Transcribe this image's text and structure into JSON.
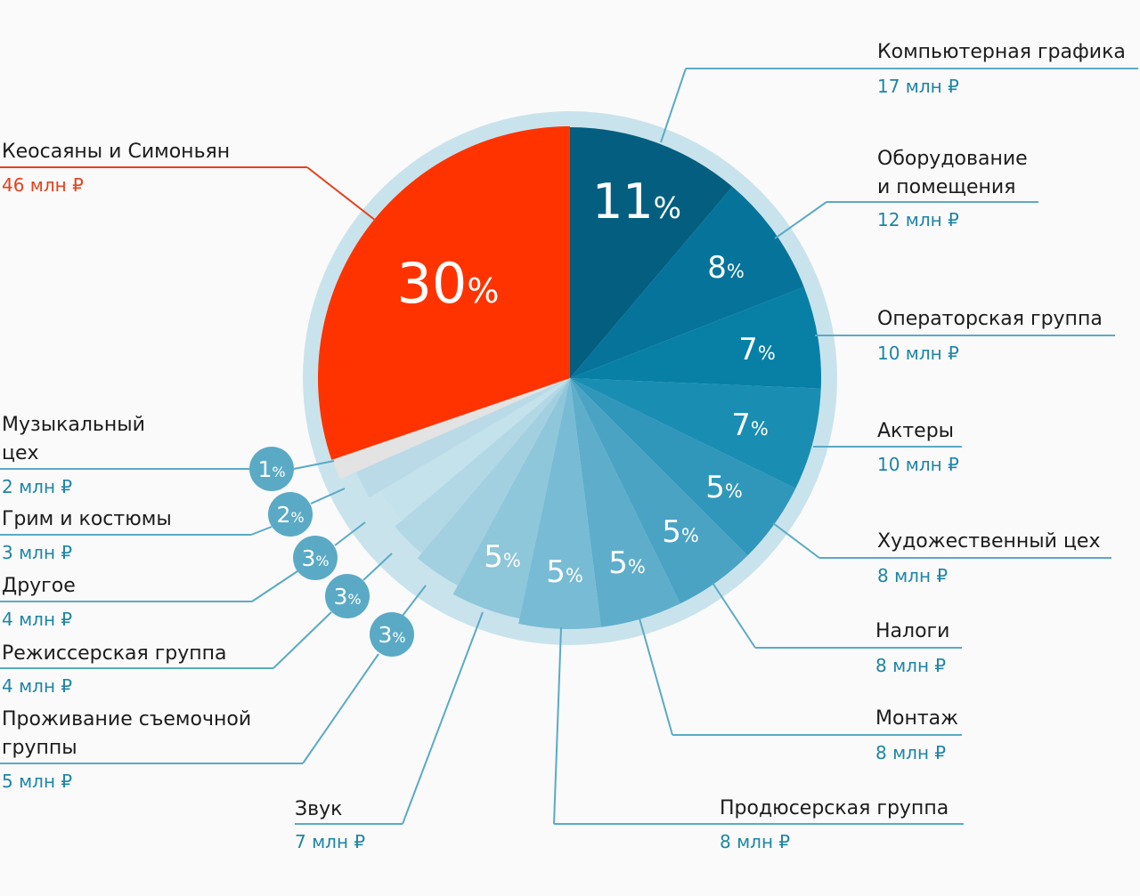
{
  "chart_data": {
    "type": "pie",
    "title": "",
    "unit": "млн ₽",
    "slices": [
      {
        "label": "Компьютерная графика",
        "value": 17,
        "value_text": "17 млн ₽",
        "pct": "11",
        "color": "#035e7f"
      },
      {
        "label": "Оборудование и помещения",
        "label_lines": [
          "Оборудование",
          "и помещения"
        ],
        "value": 12,
        "value_text": "12 млн ₽",
        "pct": "8",
        "color": "#06739a"
      },
      {
        "label": "Операторская группа",
        "value": 10,
        "value_text": "10 млн ₽",
        "pct": "7",
        "color": "#0880a6"
      },
      {
        "label": "Актеры",
        "value": 10,
        "value_text": "10 млн ₽",
        "pct": "7",
        "color": "#1a8db2"
      },
      {
        "label": "Художественный цех",
        "value": 8,
        "value_text": "8 млн ₽",
        "pct": "5",
        "color": "#3097bb"
      },
      {
        "label": "Налоги",
        "value": 8,
        "value_text": "8 млн ₽",
        "pct": "5",
        "color": "#4aa3c3"
      },
      {
        "label": "Монтаж",
        "value": 8,
        "value_text": "8 млн ₽",
        "pct": "5",
        "color": "#5eaecb"
      },
      {
        "label": "Продюсерская группа",
        "value": 8,
        "value_text": "8 млн ₽",
        "pct": "5",
        "color": "#78bbd4"
      },
      {
        "label": "Звук",
        "value": 7,
        "value_text": "7 млн ₽",
        "pct": "5",
        "color": "#8ec6da"
      },
      {
        "label": "Проживание съемочной группы",
        "label_lines": [
          "Проживание съемочной",
          "группы"
        ],
        "value": 5,
        "value_text": "5 млн ₽",
        "pct": "3",
        "color": "#a3d0e0"
      },
      {
        "label": "Режиссерская группа",
        "value": 4,
        "value_text": "4 млн ₽",
        "pct": "3",
        "color": "#b2d8e6"
      },
      {
        "label": "Другое",
        "value": 4,
        "value_text": "4 млн ₽",
        "pct": "3",
        "color": "#c4e2ec"
      },
      {
        "label": "Грим и костюмы",
        "value": 3,
        "value_text": "3 млн ₽",
        "pct": "2",
        "color": "#b9dae6"
      },
      {
        "label": "Музыкальный цех",
        "label_lines": [
          "Музыкальный",
          "цех"
        ],
        "value": 2,
        "value_text": "2 млн ₽",
        "pct": "1",
        "color": "#e3e3e3"
      },
      {
        "label": "Кеосаяны и Симоньян",
        "value": 46,
        "value_text": "46 млн ₽",
        "pct": "30",
        "color": "#ff3300"
      }
    ],
    "percent_sign": "%",
    "ring_color": "#c9e3ec",
    "line_color": "#5aaac6",
    "highlight_color": "#e8401c"
  }
}
